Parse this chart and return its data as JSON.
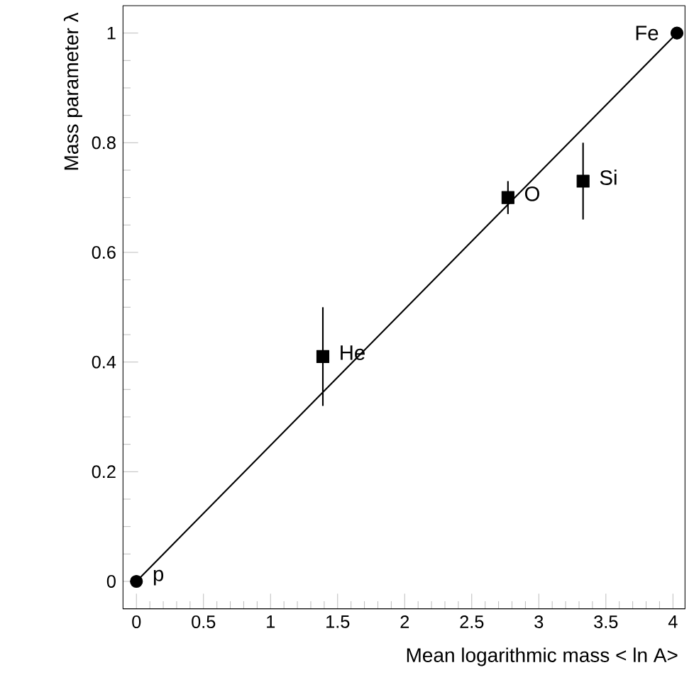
{
  "chart_data": {
    "type": "scatter",
    "xlabel": "Mean logarithmic mass < ln A>",
    "ylabel": "Mass parameter λ",
    "xlim": [
      -0.1,
      4.09
    ],
    "ylim": [
      -0.05,
      1.05
    ],
    "xticks": [
      0,
      0.5,
      1,
      1.5,
      2,
      2.5,
      3,
      3.5,
      4
    ],
    "yticks": [
      0,
      0.2,
      0.4,
      0.6,
      0.8,
      1
    ],
    "series": [
      {
        "type": "line",
        "x": [
          0,
          4.03
        ],
        "values": [
          0,
          1
        ],
        "color": "#000000",
        "marker": "none"
      },
      {
        "x": [
          0,
          4.03
        ],
        "values": [
          0,
          1
        ],
        "marker": "circle",
        "color": "#000000"
      },
      {
        "x": [
          1.39,
          2.77,
          3.33
        ],
        "values": [
          0.41,
          0.7,
          0.73
        ],
        "errors": [
          0.09,
          0.03,
          0.07
        ],
        "marker": "square",
        "color": "#000000"
      }
    ],
    "annotations": [
      {
        "text": "p",
        "x": 0,
        "y": 0
      },
      {
        "text": "He",
        "x": 1.39,
        "y": 0.41
      },
      {
        "text": "O",
        "x": 2.77,
        "y": 0.7
      },
      {
        "text": "Si",
        "x": 3.33,
        "y": 0.73
      },
      {
        "text": "Fe",
        "x": 4.03,
        "y": 1
      }
    ]
  }
}
